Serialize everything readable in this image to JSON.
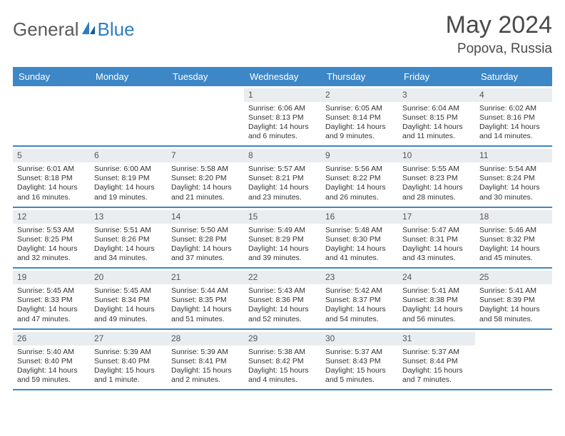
{
  "brand": {
    "text1": "General",
    "text2": "Blue",
    "text1_color": "#5a5a5a",
    "text2_color": "#2f7dc0",
    "icon_color": "#2f7dc0"
  },
  "title": "May 2024",
  "location": "Popova, Russia",
  "colors": {
    "header_bg": "#3d87c7",
    "header_text": "#ffffff",
    "date_bar_bg": "#e9edf0",
    "border": "#3d87c7",
    "text": "#333333",
    "background": "#ffffff"
  },
  "dayNames": [
    "Sunday",
    "Monday",
    "Tuesday",
    "Wednesday",
    "Thursday",
    "Friday",
    "Saturday"
  ],
  "weeks": [
    [
      null,
      null,
      null,
      {
        "d": "1",
        "sr": "Sunrise: 6:06 AM",
        "ss": "Sunset: 8:13 PM",
        "dl": "Daylight: 14 hours and 6 minutes."
      },
      {
        "d": "2",
        "sr": "Sunrise: 6:05 AM",
        "ss": "Sunset: 8:14 PM",
        "dl": "Daylight: 14 hours and 9 minutes."
      },
      {
        "d": "3",
        "sr": "Sunrise: 6:04 AM",
        "ss": "Sunset: 8:15 PM",
        "dl": "Daylight: 14 hours and 11 minutes."
      },
      {
        "d": "4",
        "sr": "Sunrise: 6:02 AM",
        "ss": "Sunset: 8:16 PM",
        "dl": "Daylight: 14 hours and 14 minutes."
      }
    ],
    [
      {
        "d": "5",
        "sr": "Sunrise: 6:01 AM",
        "ss": "Sunset: 8:18 PM",
        "dl": "Daylight: 14 hours and 16 minutes."
      },
      {
        "d": "6",
        "sr": "Sunrise: 6:00 AM",
        "ss": "Sunset: 8:19 PM",
        "dl": "Daylight: 14 hours and 19 minutes."
      },
      {
        "d": "7",
        "sr": "Sunrise: 5:58 AM",
        "ss": "Sunset: 8:20 PM",
        "dl": "Daylight: 14 hours and 21 minutes."
      },
      {
        "d": "8",
        "sr": "Sunrise: 5:57 AM",
        "ss": "Sunset: 8:21 PM",
        "dl": "Daylight: 14 hours and 23 minutes."
      },
      {
        "d": "9",
        "sr": "Sunrise: 5:56 AM",
        "ss": "Sunset: 8:22 PM",
        "dl": "Daylight: 14 hours and 26 minutes."
      },
      {
        "d": "10",
        "sr": "Sunrise: 5:55 AM",
        "ss": "Sunset: 8:23 PM",
        "dl": "Daylight: 14 hours and 28 minutes."
      },
      {
        "d": "11",
        "sr": "Sunrise: 5:54 AM",
        "ss": "Sunset: 8:24 PM",
        "dl": "Daylight: 14 hours and 30 minutes."
      }
    ],
    [
      {
        "d": "12",
        "sr": "Sunrise: 5:53 AM",
        "ss": "Sunset: 8:25 PM",
        "dl": "Daylight: 14 hours and 32 minutes."
      },
      {
        "d": "13",
        "sr": "Sunrise: 5:51 AM",
        "ss": "Sunset: 8:26 PM",
        "dl": "Daylight: 14 hours and 34 minutes."
      },
      {
        "d": "14",
        "sr": "Sunrise: 5:50 AM",
        "ss": "Sunset: 8:28 PM",
        "dl": "Daylight: 14 hours and 37 minutes."
      },
      {
        "d": "15",
        "sr": "Sunrise: 5:49 AM",
        "ss": "Sunset: 8:29 PM",
        "dl": "Daylight: 14 hours and 39 minutes."
      },
      {
        "d": "16",
        "sr": "Sunrise: 5:48 AM",
        "ss": "Sunset: 8:30 PM",
        "dl": "Daylight: 14 hours and 41 minutes."
      },
      {
        "d": "17",
        "sr": "Sunrise: 5:47 AM",
        "ss": "Sunset: 8:31 PM",
        "dl": "Daylight: 14 hours and 43 minutes."
      },
      {
        "d": "18",
        "sr": "Sunrise: 5:46 AM",
        "ss": "Sunset: 8:32 PM",
        "dl": "Daylight: 14 hours and 45 minutes."
      }
    ],
    [
      {
        "d": "19",
        "sr": "Sunrise: 5:45 AM",
        "ss": "Sunset: 8:33 PM",
        "dl": "Daylight: 14 hours and 47 minutes."
      },
      {
        "d": "20",
        "sr": "Sunrise: 5:45 AM",
        "ss": "Sunset: 8:34 PM",
        "dl": "Daylight: 14 hours and 49 minutes."
      },
      {
        "d": "21",
        "sr": "Sunrise: 5:44 AM",
        "ss": "Sunset: 8:35 PM",
        "dl": "Daylight: 14 hours and 51 minutes."
      },
      {
        "d": "22",
        "sr": "Sunrise: 5:43 AM",
        "ss": "Sunset: 8:36 PM",
        "dl": "Daylight: 14 hours and 52 minutes."
      },
      {
        "d": "23",
        "sr": "Sunrise: 5:42 AM",
        "ss": "Sunset: 8:37 PM",
        "dl": "Daylight: 14 hours and 54 minutes."
      },
      {
        "d": "24",
        "sr": "Sunrise: 5:41 AM",
        "ss": "Sunset: 8:38 PM",
        "dl": "Daylight: 14 hours and 56 minutes."
      },
      {
        "d": "25",
        "sr": "Sunrise: 5:41 AM",
        "ss": "Sunset: 8:39 PM",
        "dl": "Daylight: 14 hours and 58 minutes."
      }
    ],
    [
      {
        "d": "26",
        "sr": "Sunrise: 5:40 AM",
        "ss": "Sunset: 8:40 PM",
        "dl": "Daylight: 14 hours and 59 minutes."
      },
      {
        "d": "27",
        "sr": "Sunrise: 5:39 AM",
        "ss": "Sunset: 8:40 PM",
        "dl": "Daylight: 15 hours and 1 minute."
      },
      {
        "d": "28",
        "sr": "Sunrise: 5:39 AM",
        "ss": "Sunset: 8:41 PM",
        "dl": "Daylight: 15 hours and 2 minutes."
      },
      {
        "d": "29",
        "sr": "Sunrise: 5:38 AM",
        "ss": "Sunset: 8:42 PM",
        "dl": "Daylight: 15 hours and 4 minutes."
      },
      {
        "d": "30",
        "sr": "Sunrise: 5:37 AM",
        "ss": "Sunset: 8:43 PM",
        "dl": "Daylight: 15 hours and 5 minutes."
      },
      {
        "d": "31",
        "sr": "Sunrise: 5:37 AM",
        "ss": "Sunset: 8:44 PM",
        "dl": "Daylight: 15 hours and 7 minutes."
      },
      null
    ]
  ]
}
